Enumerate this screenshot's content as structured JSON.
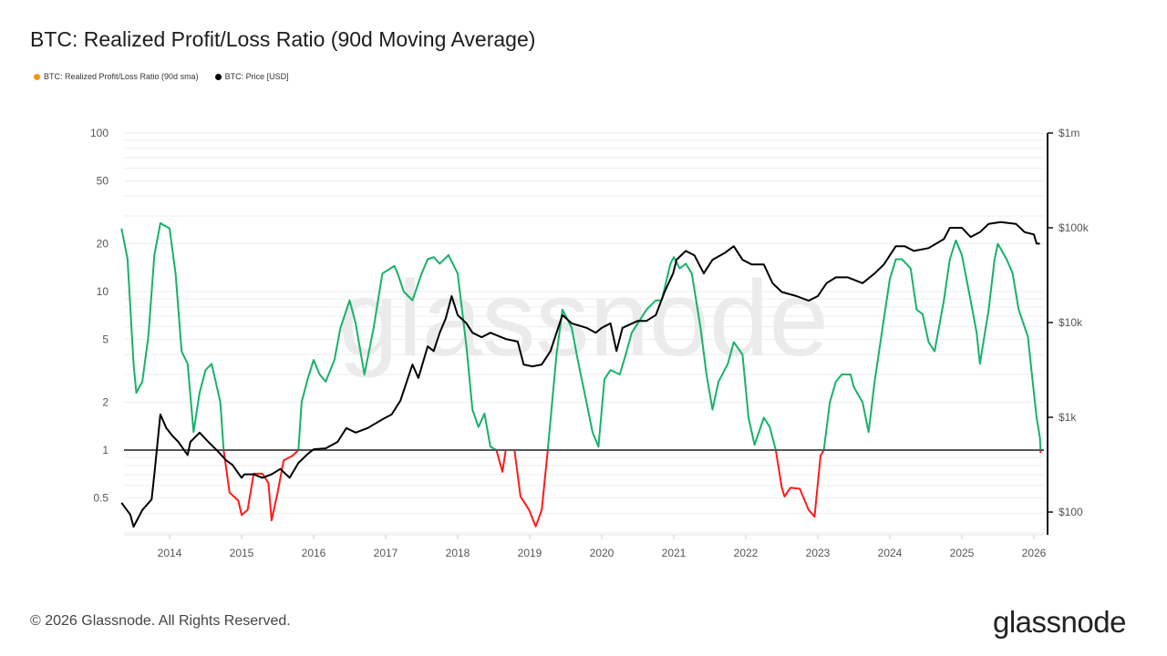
{
  "title": "BTC: Realized Profit/Loss Ratio (90d Moving Average)",
  "legend": [
    {
      "label": "BTC: Realized Profit/Loss Ratio (90d sma)",
      "color": "#f7931a"
    },
    {
      "label": "BTC: Price [USD]",
      "color": "#000000"
    }
  ],
  "watermark": "glassnode",
  "footer": {
    "copyright": "© 2026 Glassnode. All Rights Reserved.",
    "logo": "glassnode"
  },
  "chart_data": {
    "type": "line",
    "title": "BTC: Realized Profit/Loss Ratio (90d Moving Average)",
    "x_ticks": [
      "2014",
      "2015",
      "2016",
      "2017",
      "2018",
      "2019",
      "2020",
      "2021",
      "2022",
      "2023",
      "2024",
      "2025",
      "2026"
    ],
    "y_left": {
      "scale": "log",
      "ticks": [
        {
          "v": 0.5,
          "label": "0.5"
        },
        {
          "v": 1,
          "label": "1"
        },
        {
          "v": 2,
          "label": "2"
        },
        {
          "v": 5,
          "label": "5"
        },
        {
          "v": 10,
          "label": "10"
        },
        {
          "v": 20,
          "label": "20"
        },
        {
          "v": 50,
          "label": "50"
        },
        {
          "v": 100,
          "label": "100"
        }
      ],
      "range": [
        0.3,
        100
      ]
    },
    "y_right": {
      "scale": "log",
      "ticks": [
        {
          "v": 100,
          "label": "$100"
        },
        {
          "v": 1000,
          "label": "$1k"
        },
        {
          "v": 10000,
          "label": "$10k"
        },
        {
          "v": 100000,
          "label": "$100k"
        },
        {
          "v": 1000000,
          "label": "$1m"
        }
      ],
      "range": [
        60,
        1000000
      ]
    },
    "reference_line": 1,
    "grid": true,
    "legend_position": "top-left",
    "colors": {
      "above_1": "#17b26a",
      "below_1": "#ff1a1a",
      "price": "#000000",
      "reference": "#555555"
    },
    "series": [
      {
        "name": "BTC: Realized Profit/Loss Ratio (90d sma)",
        "axis": "left",
        "points": [
          [
            "2013-05-01",
            25
          ],
          [
            "2013-06-01",
            16
          ],
          [
            "2013-07-01",
            3.5
          ],
          [
            "2013-07-15",
            2.3
          ],
          [
            "2013-08-15",
            2.7
          ],
          [
            "2013-09-15",
            5.2
          ],
          [
            "2013-10-15",
            17
          ],
          [
            "2013-11-15",
            27
          ],
          [
            "2014-01-01",
            25
          ],
          [
            "2014-02-01",
            13
          ],
          [
            "2014-03-01",
            4.2
          ],
          [
            "2014-04-01",
            3.5
          ],
          [
            "2014-05-01",
            1.3
          ],
          [
            "2014-06-01",
            2.3
          ],
          [
            "2014-07-01",
            3.2
          ],
          [
            "2014-08-01",
            3.5
          ],
          [
            "2014-09-15",
            2.0
          ],
          [
            "2014-10-01",
            1.0
          ],
          [
            "2014-11-01",
            0.54
          ],
          [
            "2014-12-15",
            0.48
          ],
          [
            "2015-01-01",
            0.39
          ],
          [
            "2015-02-01",
            0.42
          ],
          [
            "2015-03-01",
            0.71
          ],
          [
            "2015-04-15",
            0.71
          ],
          [
            "2015-05-15",
            0.62
          ],
          [
            "2015-06-01",
            0.36
          ],
          [
            "2015-07-01",
            0.54
          ],
          [
            "2015-08-01",
            0.86
          ],
          [
            "2015-09-15",
            0.92
          ],
          [
            "2015-10-15",
            1.0
          ],
          [
            "2015-11-01",
            2.0
          ],
          [
            "2015-12-01",
            2.8
          ],
          [
            "2016-01-01",
            3.7
          ],
          [
            "2016-02-01",
            3.0
          ],
          [
            "2016-03-01",
            2.7
          ],
          [
            "2016-04-15",
            3.7
          ],
          [
            "2016-05-15",
            5.9
          ],
          [
            "2016-07-01",
            8.8
          ],
          [
            "2016-08-01",
            6.3
          ],
          [
            "2016-09-15",
            3.0
          ],
          [
            "2016-11-01",
            5.9
          ],
          [
            "2016-12-15",
            13
          ],
          [
            "2017-02-15",
            14.5
          ],
          [
            "2017-03-01",
            13
          ],
          [
            "2017-04-01",
            10
          ],
          [
            "2017-05-15",
            8.8
          ],
          [
            "2017-07-01",
            13
          ],
          [
            "2017-08-01",
            16
          ],
          [
            "2017-09-01",
            16.5
          ],
          [
            "2017-10-01",
            15
          ],
          [
            "2017-11-15",
            17
          ],
          [
            "2018-01-01",
            13
          ],
          [
            "2018-02-15",
            4.5
          ],
          [
            "2018-03-15",
            1.8
          ],
          [
            "2018-04-15",
            1.4
          ],
          [
            "2018-05-15",
            1.7
          ],
          [
            "2018-06-15",
            1.05
          ],
          [
            "2018-07-15",
            1.0
          ],
          [
            "2018-08-15",
            0.73
          ],
          [
            "2018-09-01",
            1.0
          ],
          [
            "2018-10-15",
            1.0
          ],
          [
            "2018-11-15",
            0.51
          ],
          [
            "2018-12-28",
            0.42
          ],
          [
            "2019-02-01",
            0.33
          ],
          [
            "2019-03-01",
            0.42
          ],
          [
            "2019-04-01",
            1.0
          ],
          [
            "2019-05-15",
            4.0
          ],
          [
            "2019-06-15",
            7.7
          ],
          [
            "2019-08-01",
            5.9
          ],
          [
            "2019-09-01",
            3.7
          ],
          [
            "2019-10-15",
            2.0
          ],
          [
            "2019-11-15",
            1.3
          ],
          [
            "2019-12-15",
            1.05
          ],
          [
            "2020-01-15",
            2.8
          ],
          [
            "2020-02-15",
            3.2
          ],
          [
            "2020-04-01",
            3.0
          ],
          [
            "2020-05-01",
            4.0
          ],
          [
            "2020-06-01",
            5.5
          ],
          [
            "2020-07-15",
            6.7
          ],
          [
            "2020-08-15",
            7.7
          ],
          [
            "2020-10-01",
            8.8
          ],
          [
            "2020-11-01",
            8.8
          ],
          [
            "2020-12-15",
            15
          ],
          [
            "2021-01-01",
            16.5
          ],
          [
            "2021-02-01",
            14
          ],
          [
            "2021-03-01",
            15
          ],
          [
            "2021-04-01",
            13
          ],
          [
            "2021-05-15",
            5.9
          ],
          [
            "2021-06-15",
            3.0
          ],
          [
            "2021-07-15",
            1.8
          ],
          [
            "2021-08-15",
            2.7
          ],
          [
            "2021-10-01",
            3.5
          ],
          [
            "2021-11-01",
            4.8
          ],
          [
            "2021-12-15",
            4.0
          ],
          [
            "2022-01-15",
            1.6
          ],
          [
            "2022-02-15",
            1.08
          ],
          [
            "2022-04-01",
            1.6
          ],
          [
            "2022-05-01",
            1.4
          ],
          [
            "2022-06-01",
            1.0
          ],
          [
            "2022-07-01",
            0.58
          ],
          [
            "2022-07-15",
            0.51
          ],
          [
            "2022-08-15",
            0.58
          ],
          [
            "2022-10-01",
            0.57
          ],
          [
            "2022-11-15",
            0.42
          ],
          [
            "2022-12-15",
            0.38
          ],
          [
            "2023-01-15",
            0.92
          ],
          [
            "2023-02-01",
            1.0
          ],
          [
            "2023-03-01",
            2.0
          ],
          [
            "2023-04-01",
            2.7
          ],
          [
            "2023-05-01",
            3.0
          ],
          [
            "2023-06-15",
            3.0
          ],
          [
            "2023-07-01",
            2.5
          ],
          [
            "2023-08-15",
            2.0
          ],
          [
            "2023-09-15",
            1.3
          ],
          [
            "2023-10-15",
            2.7
          ],
          [
            "2023-12-01",
            6.7
          ],
          [
            "2024-01-01",
            12
          ],
          [
            "2024-02-01",
            16
          ],
          [
            "2024-03-01",
            16
          ],
          [
            "2024-04-15",
            14
          ],
          [
            "2024-05-15",
            7.7
          ],
          [
            "2024-06-15",
            7.2
          ],
          [
            "2024-07-15",
            4.8
          ],
          [
            "2024-08-15",
            4.2
          ],
          [
            "2024-10-01",
            8.8
          ],
          [
            "2024-11-01",
            16
          ],
          [
            "2024-12-01",
            21
          ],
          [
            "2025-01-01",
            17
          ],
          [
            "2025-02-15",
            8.8
          ],
          [
            "2025-03-15",
            5.5
          ],
          [
            "2025-04-01",
            3.5
          ],
          [
            "2025-05-15",
            7.7
          ],
          [
            "2025-06-15",
            16
          ],
          [
            "2025-07-01",
            20
          ],
          [
            "2025-08-15",
            16
          ],
          [
            "2025-09-15",
            13
          ],
          [
            "2025-10-15",
            7.7
          ],
          [
            "2025-12-01",
            5.2
          ],
          [
            "2026-01-01",
            2.3
          ],
          [
            "2026-01-15",
            1.6
          ],
          [
            "2026-02-01",
            1.2
          ],
          [
            "2026-02-05",
            0.96
          ]
        ]
      },
      {
        "name": "BTC: Price [USD]",
        "axis": "right",
        "points": [
          [
            "2013-05-01",
            125
          ],
          [
            "2013-06-15",
            94
          ],
          [
            "2013-07-01",
            70
          ],
          [
            "2013-08-15",
            105
          ],
          [
            "2013-10-01",
            136
          ],
          [
            "2013-10-15",
            250
          ],
          [
            "2013-11-15",
            1070
          ],
          [
            "2013-12-15",
            770
          ],
          [
            "2014-01-15",
            640
          ],
          [
            "2014-02-15",
            550
          ],
          [
            "2014-04-01",
            400
          ],
          [
            "2014-04-15",
            550
          ],
          [
            "2014-06-01",
            690
          ],
          [
            "2014-07-15",
            550
          ],
          [
            "2014-09-01",
            440
          ],
          [
            "2014-10-15",
            350
          ],
          [
            "2014-11-15",
            315
          ],
          [
            "2015-01-01",
            230
          ],
          [
            "2015-01-15",
            250
          ],
          [
            "2015-03-01",
            250
          ],
          [
            "2015-04-15",
            230
          ],
          [
            "2015-06-01",
            250
          ],
          [
            "2015-07-15",
            285
          ],
          [
            "2015-09-01",
            230
          ],
          [
            "2015-10-15",
            330
          ],
          [
            "2015-12-01",
            410
          ],
          [
            "2016-01-01",
            460
          ],
          [
            "2016-03-01",
            470
          ],
          [
            "2016-05-01",
            550
          ],
          [
            "2016-06-15",
            770
          ],
          [
            "2016-08-01",
            690
          ],
          [
            "2016-10-01",
            770
          ],
          [
            "2016-12-15",
            950
          ],
          [
            "2017-02-01",
            1070
          ],
          [
            "2017-03-15",
            1500
          ],
          [
            "2017-05-15",
            3600
          ],
          [
            "2017-06-15",
            2600
          ],
          [
            "2017-08-01",
            5600
          ],
          [
            "2017-09-01",
            5000
          ],
          [
            "2017-10-01",
            7800
          ],
          [
            "2017-11-01",
            11000
          ],
          [
            "2017-12-01",
            19000
          ],
          [
            "2018-01-01",
            12000
          ],
          [
            "2018-02-15",
            9800
          ],
          [
            "2018-03-15",
            7800
          ],
          [
            "2018-05-01",
            7000
          ],
          [
            "2018-06-15",
            7800
          ],
          [
            "2018-09-01",
            6700
          ],
          [
            "2018-11-01",
            6300
          ],
          [
            "2018-12-01",
            3600
          ],
          [
            "2019-01-15",
            3450
          ],
          [
            "2019-03-01",
            3600
          ],
          [
            "2019-04-15",
            5000
          ],
          [
            "2019-05-15",
            7800
          ],
          [
            "2019-06-15",
            12000
          ],
          [
            "2019-08-01",
            9800
          ],
          [
            "2019-10-15",
            8800
          ],
          [
            "2019-12-01",
            7800
          ],
          [
            "2020-01-01",
            8800
          ],
          [
            "2020-02-15",
            9800
          ],
          [
            "2020-03-15",
            5000
          ],
          [
            "2020-04-15",
            8800
          ],
          [
            "2020-07-01",
            10400
          ],
          [
            "2020-08-15",
            10400
          ],
          [
            "2020-10-01",
            12000
          ],
          [
            "2020-11-15",
            21000
          ],
          [
            "2020-12-28",
            33000
          ],
          [
            "2021-01-15",
            46000
          ],
          [
            "2021-03-01",
            57000
          ],
          [
            "2021-04-15",
            51000
          ],
          [
            "2021-06-01",
            33000
          ],
          [
            "2021-07-15",
            46000
          ],
          [
            "2021-09-15",
            54000
          ],
          [
            "2021-11-01",
            64000
          ],
          [
            "2021-12-15",
            46000
          ],
          [
            "2022-02-01",
            41000
          ],
          [
            "2022-04-01",
            41000
          ],
          [
            "2022-05-15",
            26000
          ],
          [
            "2022-07-01",
            21000
          ],
          [
            "2022-09-15",
            19000
          ],
          [
            "2022-11-15",
            17000
          ],
          [
            "2023-01-01",
            19000
          ],
          [
            "2023-02-15",
            26000
          ],
          [
            "2023-04-01",
            30000
          ],
          [
            "2023-06-01",
            30000
          ],
          [
            "2023-08-15",
            26000
          ],
          [
            "2023-10-15",
            33000
          ],
          [
            "2023-12-01",
            41000
          ],
          [
            "2024-02-01",
            64000
          ],
          [
            "2024-03-15",
            64000
          ],
          [
            "2024-05-01",
            57000
          ],
          [
            "2024-07-15",
            61000
          ],
          [
            "2024-10-01",
            76000
          ],
          [
            "2024-11-01",
            100000
          ],
          [
            "2025-01-01",
            100000
          ],
          [
            "2025-02-15",
            80000
          ],
          [
            "2025-04-01",
            90000
          ],
          [
            "2025-05-15",
            110000
          ],
          [
            "2025-07-15",
            115000
          ],
          [
            "2025-10-01",
            110000
          ],
          [
            "2025-11-15",
            90000
          ],
          [
            "2026-01-01",
            85000
          ],
          [
            "2026-01-15",
            68000
          ],
          [
            "2026-02-01",
            68000
          ]
        ]
      }
    ]
  }
}
